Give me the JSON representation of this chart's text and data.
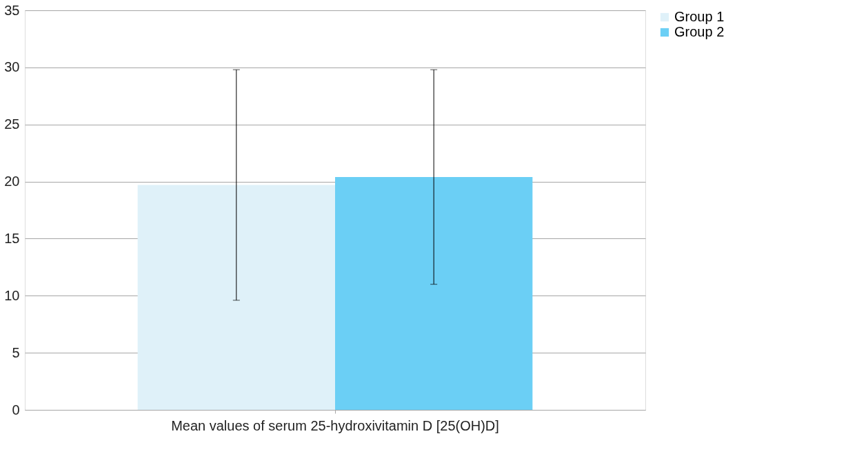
{
  "chart_data": {
    "type": "bar",
    "categories": [
      "Mean values of serum 25-hydroxivitamin D [25(OH)D]"
    ],
    "series": [
      {
        "name": "Group 1",
        "color": "#dff1f9",
        "values": [
          19.7
        ],
        "errors": [
          [
            9.6,
            29.8
          ]
        ]
      },
      {
        "name": "Group 2",
        "color": "#6bcff5",
        "values": [
          20.4
        ],
        "errors": [
          [
            11.0,
            29.8
          ]
        ]
      }
    ],
    "ylim": [
      0,
      35
    ],
    "yticks": [
      0,
      5,
      10,
      15,
      20,
      25,
      30,
      35
    ],
    "grid": "y",
    "legend": "right"
  }
}
